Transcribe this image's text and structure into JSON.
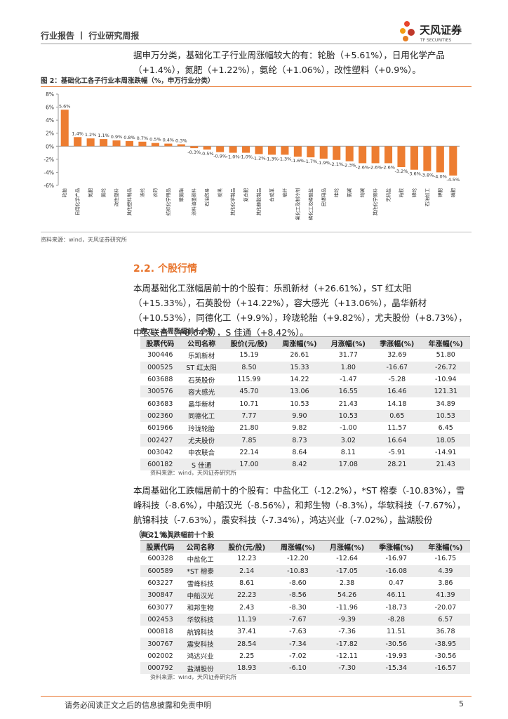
{
  "header": {
    "title": "行业报告 丨 行业研究周报",
    "logo": "天风证券",
    "logo_en": "TF SECURITIES"
  },
  "intro": "据申万分类，基础化工子行业周涨幅较大的有：轮胎（+5.61%），日用化学产品（+1.4%），氮肥（+1.22%），氨纶（+1.06%），改性塑料（+0.9%）。",
  "chart_data": {
    "type": "bar",
    "title": "图 2：基础化工各子行业本周涨跌幅（%，申万行业分类）",
    "categories": [
      "轮胎",
      "日用化学产品",
      "氮肥",
      "氨纶",
      "改性塑料",
      "其他塑料制品",
      "涤纶",
      "农药",
      "纺织化学用品",
      "聚氨酯",
      "涂料油墨颜料",
      "石油贸易",
      "炭黑",
      "其他化学制品",
      "复合肥",
      "其他橡胶制品",
      "合成革",
      "玻纤",
      "氟化工及制冷剂",
      "磷化工及磷酸盐",
      "民爆用品",
      "维纶",
      "氯碱",
      "纯碱",
      "其他化学原料",
      "无机盐",
      "粘胶",
      "锦纶",
      "石油加工",
      "钾肥",
      "磷肥"
    ],
    "values": [
      5.6,
      1.4,
      1.2,
      1.1,
      0.9,
      0.8,
      0.7,
      0.5,
      0.4,
      0.3,
      -0.3,
      -0.5,
      -0.9,
      -1.0,
      -1.0,
      -1.2,
      -1.3,
      -1.3,
      -1.6,
      -1.7,
      -1.9,
      -2.1,
      -2.3,
      -2.6,
      -2.6,
      -2.6,
      -3.2,
      -3.6,
      -3.8,
      -4.0,
      -4.5
    ],
    "value_labels": [
      "5.6%",
      "1.4%",
      "1.2%",
      "1.1%",
      "0.9%",
      "0.8%",
      "0.7%",
      "0.5%",
      "0.4%",
      "0.3%",
      "-0.3%",
      "-0.5%",
      "-0.9%",
      "-1.0%",
      "-1.0%",
      "-1.2%",
      "-1.3%",
      "-1.3%",
      "-1.6%",
      "-1.7%",
      "-1.9%",
      "-2.1%",
      "-2.3%",
      "-2.6%",
      "-2.6%",
      "-2.6%",
      "-3.2%",
      "-3.6%",
      "-3.8%",
      "-4.0%",
      "-4.5%"
    ],
    "color": "#ed7d31",
    "ylim": [
      -6,
      8
    ],
    "yticks": [
      {
        "value": -6,
        "label": "-6%"
      },
      {
        "value": -4,
        "label": "-4%"
      },
      {
        "value": -2,
        "label": "-2%"
      },
      {
        "value": 0,
        "label": "0%"
      },
      {
        "value": 2,
        "label": "2%"
      },
      {
        "value": 4,
        "label": "4%"
      },
      {
        "value": 6,
        "label": "6%"
      },
      {
        "value": 8,
        "label": "8%"
      }
    ],
    "source": "资料来源：wind，天风证券研究所"
  },
  "section": {
    "title": "2.2. 个股行情"
  },
  "para1": "本周基础化工涨幅居前十的个股有：乐凯新材（+26.61%），ST 红太阳（+15.33%），石英股份（+14.22%），容大感光（+13.06%），晶华新材（+10.53%），同德化工（+9.9%），玲珑轮胎（+9.82%），尤夫股份（+8.73%），中农联合（+8.64%），S 佳通（+8.42%）。",
  "table1": {
    "title": "表 1：本周涨幅前十个股",
    "header": [
      "股票代码",
      "公司名称",
      "股价(元/股)",
      "周涨幅(%)",
      "月涨幅(%)",
      "季涨幅(%)",
      "年涨幅(%)"
    ],
    "rows": [
      [
        "300446",
        "乐凯新材",
        "15.19",
        "26.61",
        "31.77",
        "32.69",
        "51.80"
      ],
      [
        "000525",
        "ST 红太阳",
        "8.50",
        "15.33",
        "1.80",
        "-16.67",
        "-26.72"
      ],
      [
        "603688",
        "石英股份",
        "115.99",
        "14.22",
        "-1.47",
        "-5.28",
        "-10.94"
      ],
      [
        "300576",
        "容大感光",
        "45.70",
        "13.06",
        "16.55",
        "16.46",
        "121.31"
      ],
      [
        "603683",
        "晶华新材",
        "10.71",
        "10.53",
        "21.43",
        "14.18",
        "34.89"
      ],
      [
        "002360",
        "同德化工",
        "7.77",
        "9.90",
        "10.53",
        "0.65",
        "10.53"
      ],
      [
        "601966",
        "玲珑轮胎",
        "21.80",
        "9.82",
        "-1.00",
        "11.57",
        "6.45"
      ],
      [
        "002427",
        "尤夫股份",
        "7.85",
        "8.73",
        "3.02",
        "16.64",
        "18.05"
      ],
      [
        "003042",
        "中农联合",
        "22.14",
        "8.64",
        "8.11",
        "-5.91",
        "-14.91"
      ],
      [
        "600182",
        "S 佳通",
        "17.00",
        "8.42",
        "17.08",
        "28.21",
        "21.43"
      ]
    ],
    "source": "资料来源：wind，天风证券研究所"
  },
  "para2": "本周基础化工跌幅居前十的个股有：中盐化工（-12.2%），*ST 榕泰（-10.83%），雪峰科技（-8.6%），中船汉光（-8.56%），和邦生物（-8.3%），华软科技（-7.67%），航锦科技（-7.63%），震安科技（-7.34%），鸿达兴业（-7.02%），盐湖股份（-6.1%）。",
  "table2": {
    "title": "表 2：本周跌幅前十个股",
    "header": [
      "股票代码",
      "公司名称",
      "股价(元/股)",
      "周涨幅(%)",
      "月涨幅(%)",
      "季涨幅(%)",
      "年涨幅(%)"
    ],
    "rows": [
      [
        "600328",
        "中盐化工",
        "12.23",
        "-12.20",
        "-12.64",
        "-16.97",
        "-16.75"
      ],
      [
        "600589",
        "*ST 榕泰",
        "2.14",
        "-10.83",
        "-17.05",
        "-16.08",
        "4.39"
      ],
      [
        "603227",
        "雪峰科技",
        "8.61",
        "-8.60",
        "2.38",
        "0.47",
        "3.86"
      ],
      [
        "300847",
        "中船汉光",
        "22.23",
        "-8.56",
        "54.26",
        "46.11",
        "41.39"
      ],
      [
        "603077",
        "和邦生物",
        "2.43",
        "-8.30",
        "-11.96",
        "-18.73",
        "-20.07"
      ],
      [
        "002453",
        "华软科技",
        "11.19",
        "-7.67",
        "-9.39",
        "-8.28",
        "6.57"
      ],
      [
        "000818",
        "航锦科技",
        "37.41",
        "-7.63",
        "-7.36",
        "11.51",
        "36.78"
      ],
      [
        "300767",
        "震安科技",
        "28.54",
        "-7.34",
        "-17.82",
        "-30.56",
        "-38.95"
      ],
      [
        "002002",
        "鸿达兴业",
        "2.25",
        "-7.02",
        "-12.11",
        "-19.93",
        "-30.56"
      ],
      [
        "000792",
        "盐湖股份",
        "18.93",
        "-6.10",
        "-7.30",
        "-15.34",
        "-16.57"
      ]
    ],
    "source": "资料来源：wind，天风证券研究所"
  },
  "footer": {
    "disclaimer": "请务必阅读正文之后的信息披露和免责申明",
    "page": "5"
  }
}
